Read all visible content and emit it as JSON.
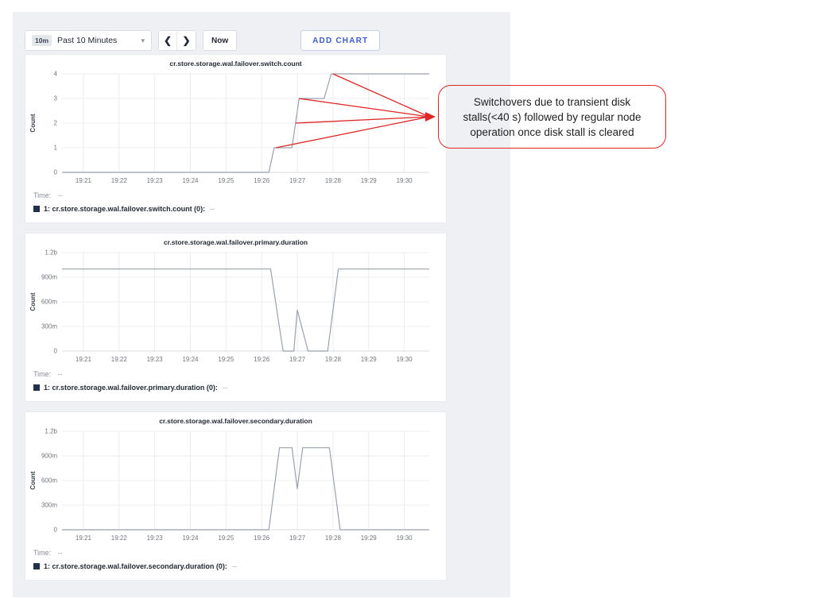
{
  "toolbar": {
    "range_badge": "10m",
    "range_label": "Past 10 Minutes",
    "prev_label": "❮",
    "next_label": "❯",
    "now_label": "Now",
    "add_chart_label": "ADD CHART"
  },
  "colors": {
    "accent_blue": "#3a5ccc",
    "annotation_red": "#de2626",
    "line_gray": "#99a1ae",
    "grid_gray": "#ececf0",
    "axis_gray": "#d8dbde",
    "legend_swatch_navy": "#22304a",
    "panel_gray": "#eef0f3"
  },
  "annotation": {
    "text": "Switchovers due to transient disk stalls(<40 s) followed by regular node operation once disk stall is cleared",
    "arrow_targets_minutes_value": [
      [
        8.0,
        4
      ],
      [
        7.05,
        3
      ],
      [
        6.95,
        2
      ],
      [
        6.4,
        1
      ]
    ]
  },
  "chart_data": [
    {
      "type": "line",
      "title": "cr.store.storage.wal.failover.switch.count",
      "ylabel": "Count",
      "x_unit": "minutes after 19:20",
      "x_domain": [
        0.4,
        10.7
      ],
      "x_ticks": [
        1,
        2,
        3,
        4,
        5,
        6,
        7,
        8,
        9,
        10
      ],
      "x_tick_labels": [
        "19:21",
        "19:22",
        "19:23",
        "19:24",
        "19:25",
        "19:26",
        "19:27",
        "19:28",
        "19:29",
        "19:30"
      ],
      "ylim": [
        0,
        4
      ],
      "y_ticks": [
        4,
        3,
        2,
        1,
        0
      ],
      "y_tick_labels": [
        "4",
        "3",
        "2",
        "1",
        "0"
      ],
      "points": [
        [
          0.4,
          0
        ],
        [
          6.2,
          0
        ],
        [
          6.35,
          1
        ],
        [
          6.85,
          1
        ],
        [
          7.05,
          3
        ],
        [
          7.75,
          3
        ],
        [
          7.95,
          4
        ],
        [
          10.7,
          4
        ]
      ],
      "time_label": "Time:",
      "time_value": "--",
      "legend": "1: cr.store.storage.wal.failover.switch.count (0):",
      "legend_value": "--"
    },
    {
      "type": "line",
      "title": "cr.store.storage.wal.failover.primary.duration",
      "ylabel": "Count",
      "x_unit": "minutes after 19:20",
      "x_domain": [
        0.4,
        10.7
      ],
      "x_ticks": [
        1,
        2,
        3,
        4,
        5,
        6,
        7,
        8,
        9,
        10
      ],
      "x_tick_labels": [
        "19:21",
        "19:22",
        "19:23",
        "19:24",
        "19:25",
        "19:26",
        "19:27",
        "19:28",
        "19:29",
        "19:30"
      ],
      "ylim": [
        0,
        1.2
      ],
      "y_ticks": [
        1.2,
        0.9,
        0.6,
        0.3,
        0
      ],
      "y_tick_labels": [
        "1.2b",
        "900m",
        "600m",
        "300m",
        "0"
      ],
      "points": [
        [
          0.4,
          1.0
        ],
        [
          6.25,
          1.0
        ],
        [
          6.6,
          0
        ],
        [
          6.9,
          0
        ],
        [
          7.0,
          0.5
        ],
        [
          7.3,
          0
        ],
        [
          7.85,
          0
        ],
        [
          8.15,
          1.0
        ],
        [
          10.7,
          1.0
        ]
      ],
      "time_label": "Time:",
      "time_value": "--",
      "legend": "1: cr.store.storage.wal.failover.primary.duration (0):",
      "legend_value": "--"
    },
    {
      "type": "line",
      "title": "cr.store.storage.wal.failover.secondary.duration",
      "ylabel": "Count",
      "x_unit": "minutes after 19:20",
      "x_domain": [
        0.4,
        10.7
      ],
      "x_ticks": [
        1,
        2,
        3,
        4,
        5,
        6,
        7,
        8,
        9,
        10
      ],
      "x_tick_labels": [
        "19:21",
        "19:22",
        "19:23",
        "19:24",
        "19:25",
        "19:26",
        "19:27",
        "19:28",
        "19:29",
        "19:30"
      ],
      "ylim": [
        0,
        1.2
      ],
      "y_ticks": [
        1.2,
        0.9,
        0.6,
        0.3,
        0
      ],
      "y_tick_labels": [
        "1.2b",
        "900m",
        "600m",
        "300m",
        "0"
      ],
      "points": [
        [
          0.4,
          0
        ],
        [
          6.2,
          0
        ],
        [
          6.5,
          1.0
        ],
        [
          6.85,
          1.0
        ],
        [
          7.0,
          0.5
        ],
        [
          7.15,
          1.0
        ],
        [
          7.9,
          1.0
        ],
        [
          8.2,
          0
        ],
        [
          10.7,
          0
        ]
      ],
      "time_label": "Time:",
      "time_value": "--",
      "legend": "1: cr.store.storage.wal.failover.secondary.duration (0):",
      "legend_value": "--"
    }
  ]
}
